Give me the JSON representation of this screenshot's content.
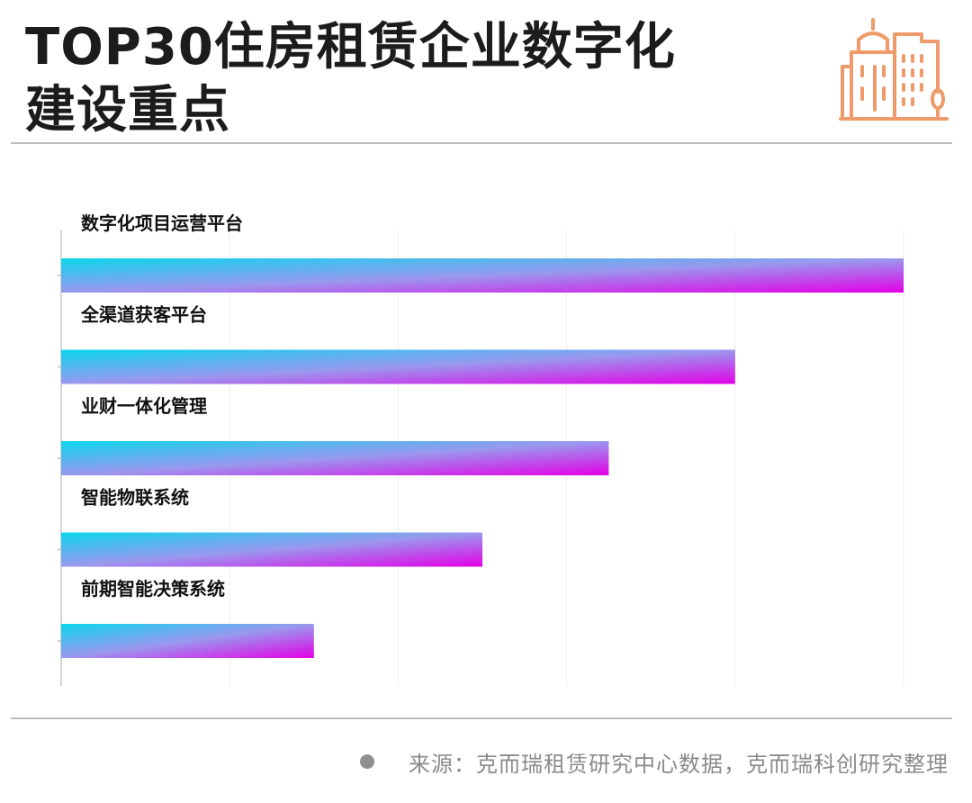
{
  "header": {
    "title_line1": "TOP30住房租赁企业数字化",
    "title_line2": "建设重点",
    "icon": "building-city-icon",
    "icon_color": "#ee9a6a"
  },
  "chart_data": {
    "type": "bar",
    "orientation": "horizontal",
    "categories": [
      "数字化项目运营平台",
      "全渠道获客平台",
      "业财一体化管理",
      "智能物联系统",
      "前期智能决策系统"
    ],
    "values": [
      100,
      80,
      65,
      50,
      30
    ],
    "xlim": [
      0,
      100
    ],
    "grid": true,
    "legend": "none",
    "title": "",
    "xlabel": "",
    "ylabel": "",
    "bar_gradient": [
      "#0ad7ec",
      "#9a98ee",
      "#e300e6"
    ]
  },
  "footer": {
    "source": "来源：克而瑞租赁研究中心数据，克而瑞科创研究整理"
  }
}
